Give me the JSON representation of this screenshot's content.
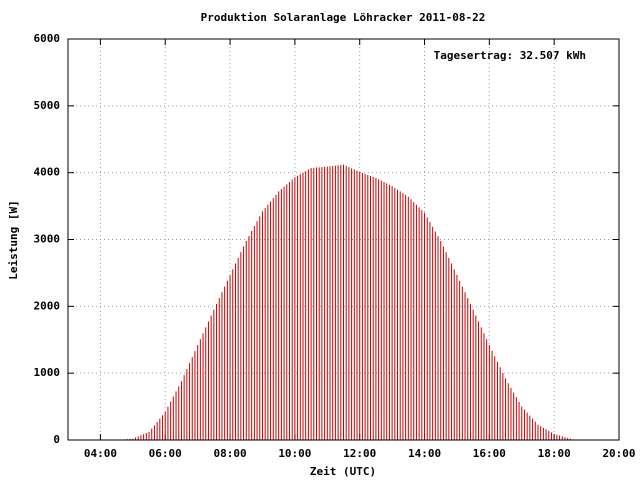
{
  "chart_data": {
    "type": "impulse",
    "title": "Produktion Solaranlage Löhracker 2011-08-22",
    "annotation": "Tagesertrag: 32.507 kWh",
    "x_label": "Zeit (UTC)",
    "y_label": "Leistung [W]",
    "color": "#cc0000",
    "grid": true,
    "xlim": [
      180,
      1200
    ],
    "xticks": [
      {
        "value": 240,
        "label": "04:00"
      },
      {
        "value": 360,
        "label": "06:00"
      },
      {
        "value": 480,
        "label": "08:00"
      },
      {
        "value": 600,
        "label": "10:00"
      },
      {
        "value": 720,
        "label": "12:00"
      },
      {
        "value": 840,
        "label": "14:00"
      },
      {
        "value": 960,
        "label": "16:00"
      },
      {
        "value": 1080,
        "label": "18:00"
      },
      {
        "value": 1200,
        "label": "20:00"
      }
    ],
    "ylim": [
      0,
      6000
    ],
    "yticks": [
      0,
      1000,
      2000,
      3000,
      4000,
      5000,
      6000
    ],
    "x": [
      275,
      280,
      285,
      290,
      295,
      300,
      305,
      310,
      315,
      320,
      325,
      330,
      335,
      340,
      345,
      350,
      355,
      360,
      365,
      370,
      375,
      380,
      385,
      390,
      395,
      400,
      405,
      410,
      415,
      420,
      425,
      430,
      435,
      440,
      445,
      450,
      455,
      460,
      465,
      470,
      475,
      480,
      485,
      490,
      495,
      500,
      505,
      510,
      515,
      520,
      525,
      530,
      535,
      540,
      545,
      550,
      555,
      560,
      565,
      570,
      575,
      580,
      585,
      590,
      595,
      600,
      605,
      610,
      615,
      620,
      625,
      630,
      635,
      640,
      645,
      650,
      655,
      660,
      665,
      670,
      675,
      680,
      685,
      690,
      695,
      700,
      705,
      710,
      715,
      720,
      725,
      730,
      735,
      740,
      745,
      750,
      755,
      760,
      765,
      770,
      775,
      780,
      785,
      790,
      795,
      800,
      805,
      810,
      815,
      820,
      825,
      830,
      835,
      840,
      845,
      850,
      855,
      860,
      865,
      870,
      875,
      880,
      885,
      890,
      895,
      900,
      905,
      910,
      915,
      920,
      925,
      930,
      935,
      940,
      945,
      950,
      955,
      960,
      965,
      970,
      975,
      980,
      985,
      990,
      995,
      1000,
      1005,
      1010,
      1015,
      1020,
      1025,
      1030,
      1035,
      1040,
      1045,
      1050,
      1055,
      1060,
      1065,
      1070,
      1075,
      1080,
      1085,
      1090,
      1095,
      1100,
      1105,
      1110,
      1115
    ],
    "values": [
      5,
      8,
      11,
      14,
      17,
      20,
      37,
      53,
      70,
      87,
      103,
      120,
      170,
      220,
      270,
      320,
      370,
      420,
      497,
      573,
      650,
      727,
      803,
      880,
      970,
      1060,
      1150,
      1240,
      1330,
      1420,
      1508,
      1597,
      1685,
      1773,
      1862,
      1950,
      2037,
      2123,
      2210,
      2297,
      2383,
      2470,
      2555,
      2640,
      2725,
      2810,
      2895,
      2980,
      3053,
      3127,
      3200,
      3273,
      3347,
      3420,
      3470,
      3520,
      3570,
      3620,
      3670,
      3720,
      3755,
      3790,
      3825,
      3860,
      3895,
      3930,
      3953,
      3977,
      4000,
      4023,
      4047,
      4070,
      4073,
      4077,
      4080,
      4083,
      4087,
      4090,
      4095,
      4100,
      4105,
      4110,
      4115,
      4120,
      4102,
      4083,
      4065,
      4047,
      4028,
      4010,
      3995,
      3980,
      3965,
      3950,
      3935,
      3920,
      3900,
      3880,
      3860,
      3840,
      3820,
      3800,
      3773,
      3747,
      3720,
      3693,
      3667,
      3640,
      3600,
      3560,
      3520,
      3480,
      3440,
      3400,
      3330,
      3260,
      3190,
      3120,
      3050,
      2980,
      2895,
      2810,
      2725,
      2640,
      2555,
      2470,
      2383,
      2297,
      2210,
      2123,
      2037,
      1950,
      1862,
      1773,
      1685,
      1597,
      1508,
      1420,
      1337,
      1253,
      1170,
      1087,
      1003,
      920,
      850,
      780,
      710,
      640,
      570,
      500,
      455,
      410,
      365,
      320,
      275,
      230,
      207,
      183,
      160,
      137,
      113,
      90,
      78,
      67,
      55,
      43,
      32,
      20,
      10
    ]
  }
}
